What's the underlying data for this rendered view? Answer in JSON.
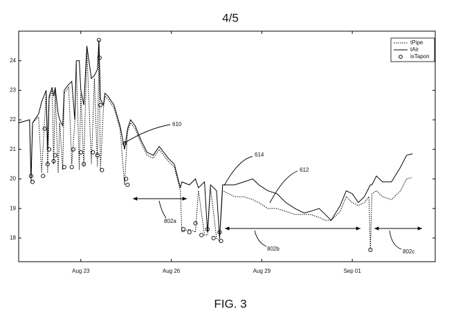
{
  "chart_data": {
    "type": "line",
    "title": "4/5",
    "caption": "FIG. 3",
    "x": [
      20.95,
      21.3,
      21.35,
      21.4,
      21.6,
      21.7,
      21.85,
      21.9,
      21.95,
      22.05,
      22.1,
      22.15,
      22.25,
      22.3,
      22.4,
      22.45,
      22.6,
      22.7,
      22.8,
      22.85,
      22.95,
      23.0,
      23.1,
      23.2,
      23.35,
      23.45,
      23.55,
      23.6,
      23.65,
      23.75,
      23.8,
      23.9,
      24.1,
      24.3,
      24.45,
      24.55,
      24.65,
      24.8,
      25.0,
      25.2,
      25.4,
      25.6,
      25.75,
      25.9,
      26.1,
      26.3,
      26.35,
      26.6,
      26.8,
      26.9,
      27.1,
      27.2,
      27.3,
      27.5,
      27.6,
      27.7,
      27.9,
      28.1,
      28.4,
      28.7,
      28.9,
      29.2,
      29.5,
      29.8,
      30.1,
      30.4,
      30.6,
      30.9,
      31.1,
      31.3,
      31.6,
      31.8,
      32.0,
      32.2,
      32.4,
      32.55,
      32.6,
      32.65,
      32.8,
      33.0,
      33.3,
      33.6,
      33.8,
      34.0
    ],
    "series": [
      {
        "name": "tPipe",
        "color": "#000000",
        "dash": "dotted",
        "values": [
          21.9,
          22.0,
          19.9,
          21.9,
          22.1,
          20.2,
          22.9,
          20.2,
          22.7,
          23.0,
          20.5,
          23.0,
          20.2,
          21.9,
          20.3,
          22.9,
          23.1,
          20.5,
          21.9,
          23.9,
          20.3,
          22.9,
          20.4,
          24.4,
          20.5,
          23.4,
          20.4,
          24.6,
          20.3,
          22.4,
          22.8,
          22.7,
          22.4,
          21.7,
          19.8,
          21.6,
          21.9,
          21.7,
          21.2,
          20.8,
          20.7,
          21.0,
          20.8,
          20.6,
          20.4,
          19.6,
          18.2,
          18.3,
          18.2,
          19.6,
          18.1,
          18.1,
          19.7,
          18.0,
          17.9,
          19.6,
          19.5,
          19.4,
          19.4,
          19.3,
          19.2,
          19.0,
          19.0,
          18.9,
          18.8,
          18.8,
          18.8,
          18.7,
          18.6,
          18.6,
          18.9,
          19.4,
          19.2,
          19.1,
          19.2,
          19.4,
          17.6,
          19.5,
          19.6,
          19.4,
          19.3,
          19.6,
          20.0,
          20.05
        ]
      },
      {
        "name": "tAir",
        "color": "#000000",
        "dash": "solid",
        "values": [
          21.9,
          22.0,
          20.0,
          21.9,
          22.2,
          22.6,
          23.0,
          21.0,
          22.8,
          23.1,
          22.8,
          23.1,
          22.2,
          22.0,
          21.8,
          23.0,
          23.2,
          23.3,
          22.0,
          24.0,
          24.0,
          23.0,
          22.5,
          24.5,
          23.4,
          23.5,
          23.7,
          24.7,
          22.7,
          22.5,
          22.9,
          22.8,
          22.5,
          21.8,
          21.0,
          21.7,
          22.0,
          21.8,
          21.3,
          20.9,
          20.8,
          21.1,
          20.9,
          20.7,
          20.5,
          19.7,
          19.9,
          19.8,
          20.0,
          19.7,
          19.9,
          18.2,
          19.8,
          19.6,
          18.0,
          19.8,
          19.8,
          19.8,
          19.9,
          20.0,
          19.8,
          19.6,
          19.5,
          19.2,
          19.0,
          18.85,
          18.9,
          19.0,
          18.8,
          18.6,
          19.1,
          19.6,
          19.5,
          19.2,
          19.4,
          19.7,
          19.8,
          19.8,
          20.1,
          19.9,
          19.9,
          20.4,
          20.8,
          20.85
        ]
      }
    ],
    "scatter": {
      "name": "isTapon",
      "color": "#000000",
      "marker": "circle",
      "x": [
        21.35,
        21.4,
        21.75,
        21.8,
        21.9,
        21.95,
        22.1,
        22.15,
        22.45,
        22.7,
        22.75,
        23.0,
        23.1,
        23.4,
        23.55,
        23.6,
        23.62,
        23.65,
        23.7,
        24.45,
        24.5,
        24.55,
        26.4,
        26.6,
        26.8,
        27.0,
        27.2,
        27.4,
        27.6,
        27.65,
        32.6
      ],
      "y": [
        20.1,
        19.9,
        20.1,
        21.7,
        20.5,
        21.0,
        20.6,
        20.8,
        20.4,
        20.4,
        21.0,
        20.9,
        20.5,
        20.9,
        20.8,
        24.7,
        24.1,
        22.5,
        20.3,
        21.2,
        20.0,
        19.8,
        18.3,
        18.2,
        18.5,
        18.1,
        18.3,
        18.0,
        18.2,
        17.9,
        17.6
      ]
    },
    "xlim": [
      20.94,
      34.75
    ],
    "ylim": [
      17.2,
      25
    ],
    "xticks": [
      {
        "value": 23,
        "label": "Aug 23"
      },
      {
        "value": 26,
        "label": "Aug 26"
      },
      {
        "value": 29,
        "label": "Aug 29"
      },
      {
        "value": 32,
        "label": "Sep 01"
      }
    ],
    "yticks": [
      18,
      19,
      20,
      21,
      22,
      23,
      24
    ],
    "grid": false,
    "legend": "upper right",
    "annotations": [
      "610",
      "614",
      "612",
      "802a",
      "802b",
      "802c"
    ]
  }
}
